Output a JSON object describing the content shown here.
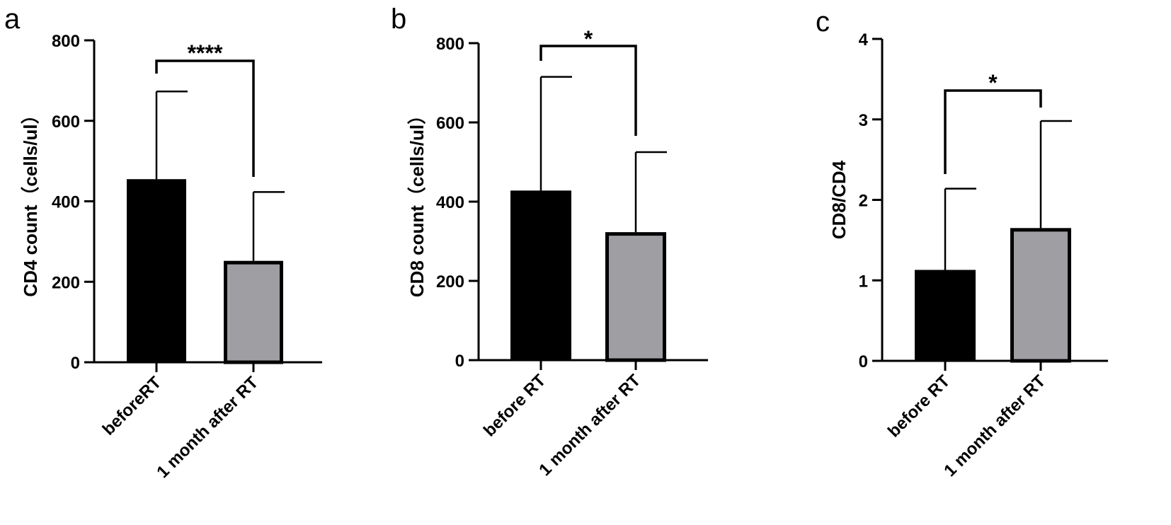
{
  "chart_data": [
    {
      "type": "bar",
      "panel": "a",
      "ylabel": "CD4 count（cells/ul）",
      "categories": [
        "beforeRT",
        "1 month after RT"
      ],
      "values": [
        455,
        252
      ],
      "error_upper": [
        673,
        423
      ],
      "ylim": [
        0,
        800
      ],
      "yticks": [
        0,
        200,
        400,
        600,
        800
      ],
      "significance": "****",
      "bar_colors": [
        "#000000",
        "#9e9ea3"
      ],
      "grid": false
    },
    {
      "type": "bar",
      "panel": "b",
      "ylabel": "CD8 count（cells/ul）",
      "categories": [
        "before RT",
        "1 month after RT"
      ],
      "values": [
        428,
        323
      ],
      "error_upper": [
        715,
        525
      ],
      "ylim": [
        0,
        800
      ],
      "yticks": [
        0,
        200,
        400,
        600,
        800
      ],
      "significance": "*",
      "bar_colors": [
        "#000000",
        "#9e9ea3"
      ],
      "grid": false
    },
    {
      "type": "bar",
      "panel": "c",
      "ylabel": "CD8/CD4",
      "categories": [
        "before RT",
        "1 month after RT"
      ],
      "values": [
        1.13,
        1.65
      ],
      "error_upper": [
        2.14,
        2.98
      ],
      "ylim": [
        0,
        4
      ],
      "yticks": [
        0,
        1,
        2,
        3,
        4
      ],
      "significance": "*",
      "bar_colors": [
        "#000000",
        "#9e9ea3"
      ],
      "grid": false
    }
  ]
}
